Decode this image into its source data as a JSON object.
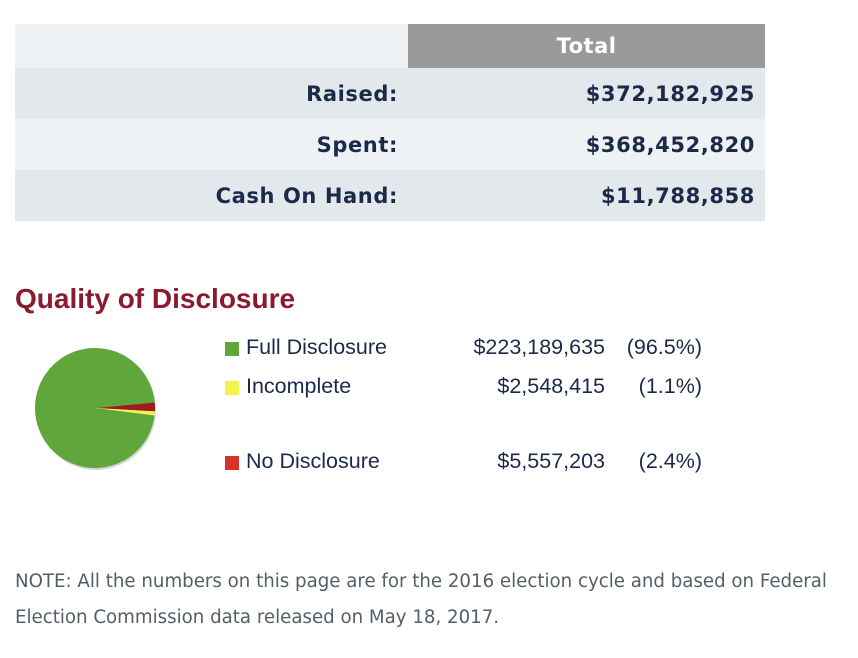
{
  "summary_table": {
    "header": "Total",
    "rows": [
      {
        "label": "Raised:",
        "value": "$372,182,925"
      },
      {
        "label": "Spent:",
        "value": "$368,452,820"
      },
      {
        "label": "Cash On Hand:",
        "value": "$11,788,858"
      }
    ]
  },
  "disclosure": {
    "title": "Quality of Disclosure",
    "items": [
      {
        "label": "Full Disclosure",
        "amount": "$223,189,635",
        "percent": "(96.5%)",
        "color": "#5fa63b"
      },
      {
        "label": "Incomplete",
        "amount": "$2,548,415",
        "percent": "(1.1%)",
        "color": "#f4f44e"
      },
      {
        "label": "No Disclosure",
        "amount": "$5,557,203",
        "percent": "(2.4%)",
        "color": "#d8322a"
      }
    ]
  },
  "chart_data": {
    "type": "pie",
    "title": "Quality of Disclosure",
    "categories": [
      "Full Disclosure",
      "Incomplete",
      "No Disclosure"
    ],
    "values": [
      223189635,
      2548415,
      5557203
    ],
    "percents": [
      96.5,
      1.1,
      2.4
    ],
    "colors": [
      "#5fa63b",
      "#f4f44e",
      "#9b1d1d"
    ],
    "legend": "right"
  },
  "note": "NOTE: All the numbers on this page are for the 2016 election cycle and based on Federal Election Commission data released on May 18, 2017."
}
